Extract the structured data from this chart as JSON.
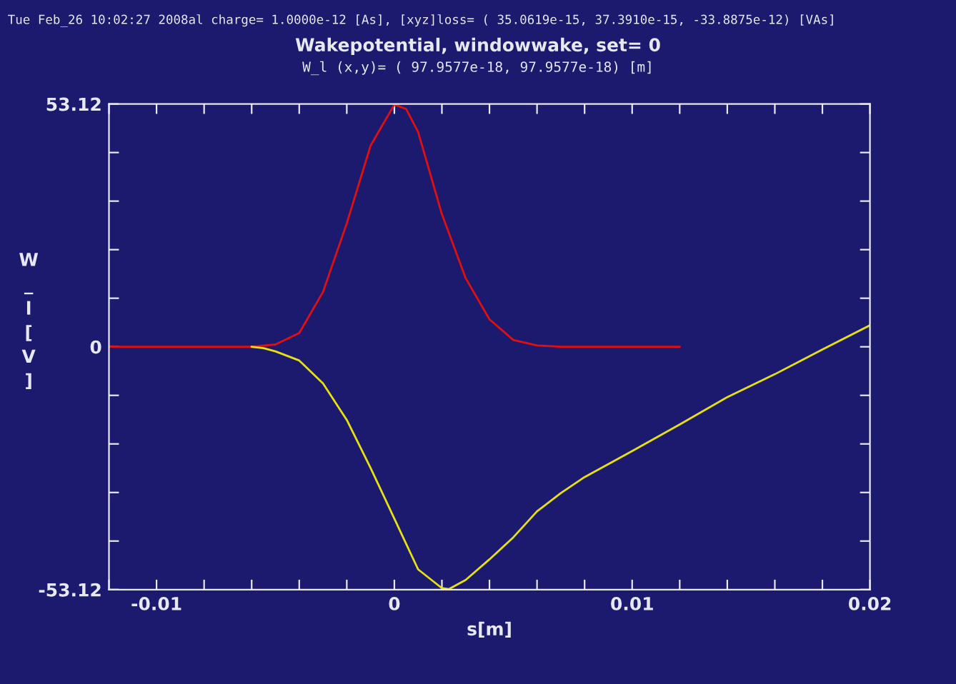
{
  "chart_data": {
    "type": "line",
    "title": "Wakepotential, windowwake, set= 0",
    "subtitle": "W_l (x,y)= ( 97.9577e-18, 97.9577e-18) [m]",
    "annotations": [
      "Tue Feb_26 10:02:27 2008al charge= 1.0000e-12 [As], [xyz]loss= ( 35.0619e-15, 37.3910e-15, -33.8875e-12) [VAs]"
    ],
    "xlabel": "s[m]",
    "ylabel": "W_l[V]",
    "series": [
      {
        "color": "#e01010",
        "x": [
          -0.012,
          -0.006,
          -0.005,
          -0.004,
          -0.003,
          -0.002,
          -0.001,
          0,
          0.0005,
          0.001,
          0.002,
          0.003,
          0.004,
          0.005,
          0.006,
          0.007,
          0.012
        ],
        "values": [
          0,
          0,
          0.5,
          3,
          12,
          27,
          44,
          53,
          52,
          47,
          29,
          15,
          6,
          1.5,
          0.3,
          0,
          0
        ]
      },
      {
        "color": "#e8e010",
        "x": [
          -0.006,
          -0.0055,
          -0.005,
          -0.004,
          -0.003,
          -0.002,
          -0.001,
          0,
          0.001,
          0.002,
          0.0023,
          0.003,
          0.004,
          0.005,
          0.006,
          0.007,
          0.008,
          0.01,
          0.012,
          0.014,
          0.016,
          0.018,
          0.02
        ],
        "values": [
          0,
          -0.3,
          -1,
          -3,
          -8,
          -16,
          -26.5,
          -37.6,
          -48.7,
          -52.8,
          -53,
          -51,
          -46.5,
          -41.7,
          -36,
          -32,
          -28.5,
          -22.8,
          -17,
          -11,
          -6,
          -0.6,
          4.7
        ]
      }
    ],
    "xlim": [
      -0.012,
      0.02
    ],
    "xticks": [
      {
        "value": -0.012,
        "label": null
      },
      -0.01,
      {
        "value": -0.008,
        "label": null
      },
      {
        "value": -0.006,
        "label": null
      },
      {
        "value": -0.004,
        "label": null
      },
      {
        "value": -0.002,
        "label": null
      },
      0,
      {
        "value": 0.002,
        "label": null
      },
      {
        "value": 0.004,
        "label": null
      },
      {
        "value": 0.006,
        "label": null
      },
      {
        "value": 0.008,
        "label": null
      },
      0.01,
      {
        "value": 0.012,
        "label": null
      },
      {
        "value": 0.014,
        "label": null
      },
      {
        "value": 0.016,
        "label": null
      },
      {
        "value": 0.018,
        "label": null
      },
      0.02
    ],
    "ylim": [
      -53.12,
      53.12
    ],
    "yticks": [
      -53.12,
      {
        "value": -42.496,
        "label": null
      },
      {
        "value": -31.872,
        "label": null
      },
      {
        "value": -21.248,
        "label": null
      },
      {
        "value": -10.624,
        "label": null
      },
      0,
      {
        "value": 10.624,
        "label": null
      },
      {
        "value": 21.248,
        "label": null
      },
      {
        "value": 31.872,
        "label": null
      },
      {
        "value": 42.496,
        "label": null
      },
      53.12
    ],
    "grid": false,
    "legend": false,
    "marker": "none",
    "line_style": "solid"
  }
}
